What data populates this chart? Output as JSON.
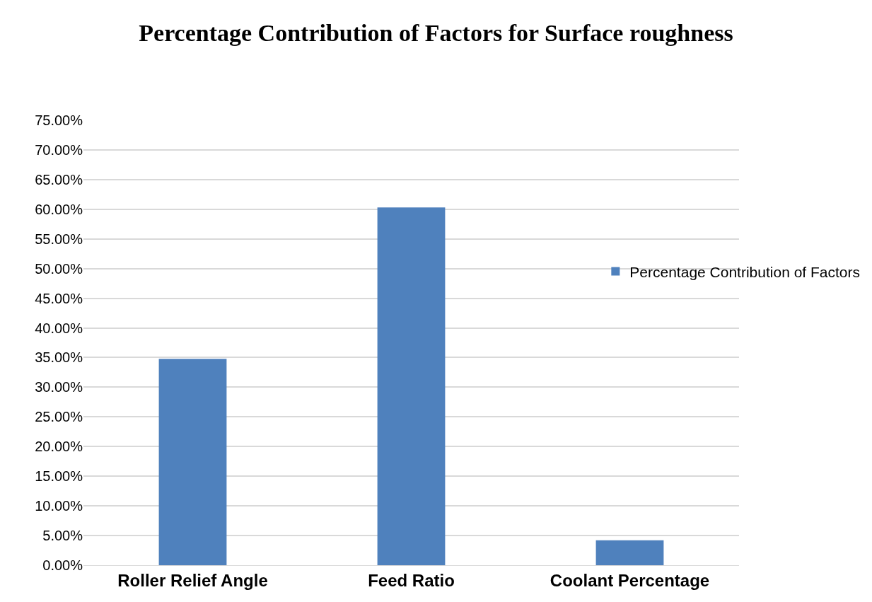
{
  "chart_data": {
    "type": "bar",
    "title": "Percentage Contribution of Factors for Surface roughness",
    "categories": [
      "Roller Relief Angle",
      "Feed Ratio",
      "Coolant Percentage"
    ],
    "series": [
      {
        "name": "Percentage Contribution of Factors",
        "color": "#4f81bd",
        "values": [
          34.8,
          60.3,
          4.2
        ]
      }
    ],
    "ylim": [
      0,
      75
    ],
    "yticks": [
      {
        "value": 0,
        "label": "0.00%"
      },
      {
        "value": 5,
        "label": "5.00%"
      },
      {
        "value": 10,
        "label": "10.00%"
      },
      {
        "value": 15,
        "label": "15.00%"
      },
      {
        "value": 20,
        "label": "20.00%"
      },
      {
        "value": 25,
        "label": "25.00%"
      },
      {
        "value": 30,
        "label": "30.00%"
      },
      {
        "value": 35,
        "label": "35.00%"
      },
      {
        "value": 40,
        "label": "40.00%"
      },
      {
        "value": 45,
        "label": "45.00%"
      },
      {
        "value": 50,
        "label": "50.00%"
      },
      {
        "value": 55,
        "label": "55.00%"
      },
      {
        "value": 60,
        "label": "60.00%"
      },
      {
        "value": 65,
        "label": "65.00%"
      },
      {
        "value": 70,
        "label": "70.00%"
      },
      {
        "value": 75,
        "label": "75.00%"
      }
    ],
    "grid": "y",
    "legend": "right"
  }
}
